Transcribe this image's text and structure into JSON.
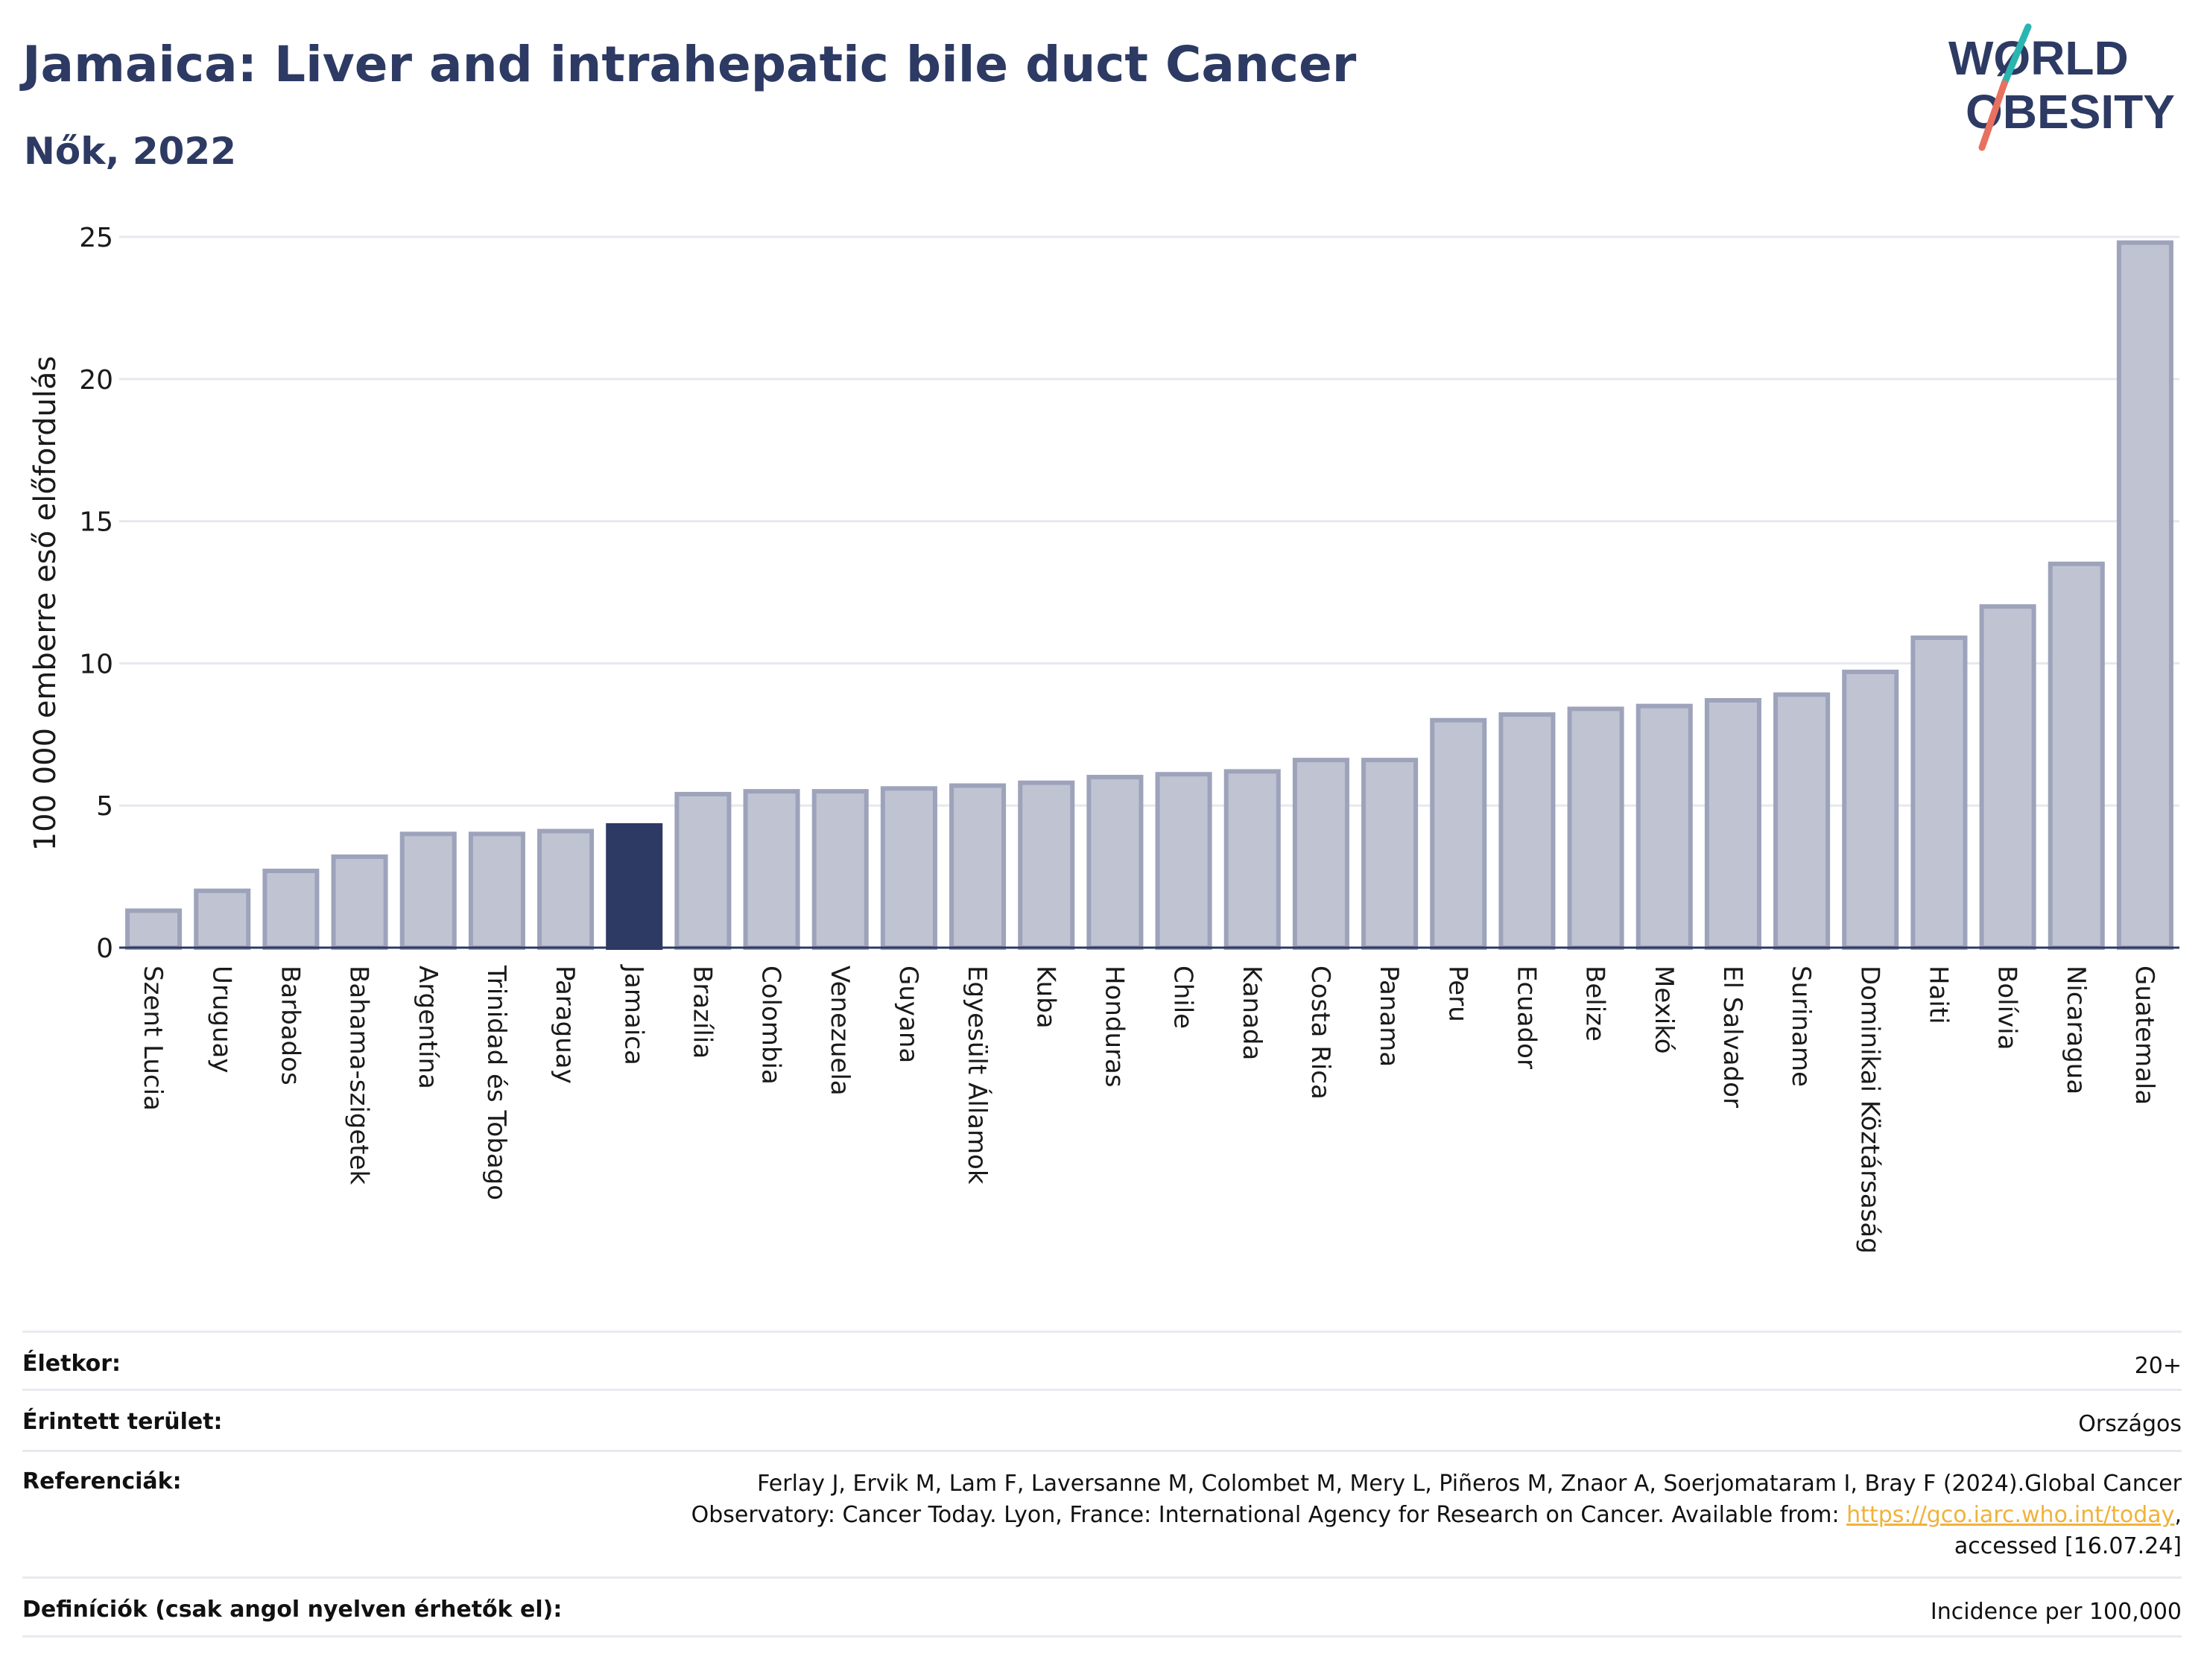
{
  "header": {
    "title": "Jamaica: Liver and intrahepatic bile duct Cancer",
    "subtitle": "Nők, 2022"
  },
  "logo": {
    "line1": "WØRLD",
    "line2": "OBESITY",
    "colors": {
      "text": "#2d3a63",
      "slash_top": "#2bb5b0",
      "slash_bottom": "#e8705f"
    }
  },
  "colors": {
    "bar": "#c0c4d2",
    "bar_border": "#9da3ba",
    "highlight": "#2d3a63",
    "grid": "#e6e8ee",
    "axis": "#2d3a63"
  },
  "chart_data": {
    "type": "bar",
    "title": "Jamaica: Liver and intrahepatic bile duct Cancer",
    "subtitle": "Nők, 2022",
    "ylabel": "100 000 emberre eső előfordulás",
    "xlabel": "",
    "ylim": [
      0,
      25
    ],
    "yticks": [
      0,
      5,
      10,
      15,
      20,
      25
    ],
    "grid": true,
    "highlight": "Jamaica",
    "categories": [
      "Szent Lucia",
      "Uruguay",
      "Barbados",
      "Bahama-szigetek",
      "Argentína",
      "Trinidad és Tobago",
      "Paraguay",
      "Jamaica",
      "Brazília",
      "Colombia",
      "Venezuela",
      "Guyana",
      "Egyesült Államok",
      "Kuba",
      "Honduras",
      "Chile",
      "Kanada",
      "Costa Rica",
      "Panama",
      "Peru",
      "Ecuador",
      "Belize",
      "Mexikó",
      "El Salvador",
      "Suriname",
      "Dominikai Köztársaság",
      "Haiti",
      "Bolívia",
      "Nicaragua",
      "Guatemala"
    ],
    "values": [
      1.3,
      2.0,
      2.7,
      3.2,
      4.0,
      4.0,
      4.1,
      4.3,
      5.4,
      5.5,
      5.5,
      5.6,
      5.7,
      5.8,
      6.0,
      6.1,
      6.2,
      6.6,
      6.6,
      8.0,
      8.2,
      8.4,
      8.5,
      8.7,
      8.9,
      9.7,
      10.9,
      12.0,
      13.5,
      24.8
    ]
  },
  "meta": {
    "rows": [
      {
        "label": "Életkor:",
        "value": "20+"
      },
      {
        "label": "Érintett terület:",
        "value": "Országos"
      },
      {
        "label": "Referenciák:",
        "value_line1": "Ferlay J, Ervik M, Lam F, Laversanne M, Colombet M, Mery L, Piñeros M, Znaor A, Soerjomataram I, Bray F (2024).Global Cancer",
        "value_line2": "Observatory: Cancer Today. Lyon, France: International Agency for Research on Cancer. Available from: ",
        "link": "https://gco.iarc.who.int/today",
        "value_line2_end": ",",
        "value_line3": "accessed [16.07.24]"
      },
      {
        "label": "Definíciók (csak angol nyelven érhetők el):",
        "value": "Incidence per 100,000"
      }
    ]
  }
}
